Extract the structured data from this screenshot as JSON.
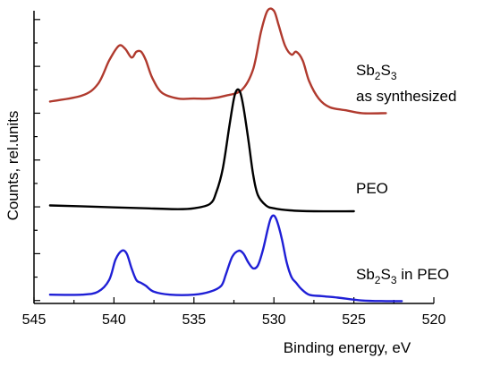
{
  "chart_data": {
    "type": "line",
    "xlabel": "Binding energy, eV",
    "ylabel": "Counts, rel.units",
    "xlim": [
      545,
      520
    ],
    "x_reversed": true,
    "x_ticks": [
      545,
      540,
      535,
      530,
      525,
      520
    ],
    "y_ticks_shown": false,
    "series": [
      {
        "name_parts": {
          "main": "Sb",
          "sub1": "2",
          "mid": "S",
          "sub2": "3"
        },
        "name_line2": "as synthesized",
        "color": "#b03a2e",
        "x": [
          544.0,
          542.0,
          541.0,
          540.3,
          539.7,
          539.3,
          538.9,
          538.6,
          538.3,
          538.0,
          537.6,
          537.0,
          536.0,
          535.0,
          534.0,
          533.0,
          532.0,
          531.3,
          530.8,
          530.4,
          530.0,
          529.7,
          529.3,
          528.9,
          528.6,
          528.2,
          527.8,
          527.2,
          526.5,
          525.5,
          524.5,
          523.0
        ],
        "y": [
          0.69,
          0.71,
          0.75,
          0.83,
          0.88,
          0.87,
          0.84,
          0.86,
          0.86,
          0.83,
          0.77,
          0.72,
          0.7,
          0.7,
          0.7,
          0.71,
          0.73,
          0.8,
          0.93,
          1.0,
          1.0,
          0.95,
          0.88,
          0.85,
          0.86,
          0.83,
          0.76,
          0.7,
          0.67,
          0.66,
          0.65,
          0.65
        ]
      },
      {
        "name": "PEO",
        "color": "#000000",
        "x": [
          544.0,
          541.0,
          538.0,
          536.0,
          535.0,
          534.0,
          533.6,
          533.2,
          532.8,
          532.5,
          532.3,
          532.1,
          531.9,
          531.6,
          531.3,
          531.0,
          530.5,
          530.0,
          529.0,
          527.5,
          525.0
        ],
        "y": [
          0.335,
          0.33,
          0.325,
          0.322,
          0.325,
          0.34,
          0.38,
          0.46,
          0.6,
          0.7,
          0.73,
          0.72,
          0.67,
          0.56,
          0.44,
          0.37,
          0.335,
          0.325,
          0.318,
          0.315,
          0.315
        ]
      },
      {
        "name_parts": {
          "main": "Sb",
          "sub1": "2",
          "mid": "S",
          "sub2": "3",
          "suffix": " in PEO"
        },
        "color": "#1f1fd6",
        "x": [
          544.0,
          542.0,
          541.0,
          540.3,
          539.9,
          539.5,
          539.2,
          538.9,
          538.6,
          538.3,
          538.0,
          537.5,
          536.5,
          535.0,
          534.0,
          533.3,
          533.0,
          532.6,
          532.2,
          531.9,
          531.6,
          531.3,
          531.0,
          530.7,
          530.4,
          530.2,
          530.0,
          529.8,
          529.5,
          529.2,
          528.9,
          528.6,
          528.3,
          527.8,
          527.0,
          526.0,
          524.5,
          523.0,
          522.0
        ],
        "y": [
          0.03,
          0.03,
          0.04,
          0.08,
          0.15,
          0.18,
          0.17,
          0.12,
          0.08,
          0.07,
          0.06,
          0.04,
          0.03,
          0.03,
          0.04,
          0.06,
          0.1,
          0.16,
          0.18,
          0.17,
          0.14,
          0.12,
          0.13,
          0.18,
          0.25,
          0.29,
          0.3,
          0.28,
          0.22,
          0.14,
          0.09,
          0.07,
          0.05,
          0.03,
          0.025,
          0.02,
          0.01,
          0.008,
          0.008
        ]
      }
    ]
  }
}
